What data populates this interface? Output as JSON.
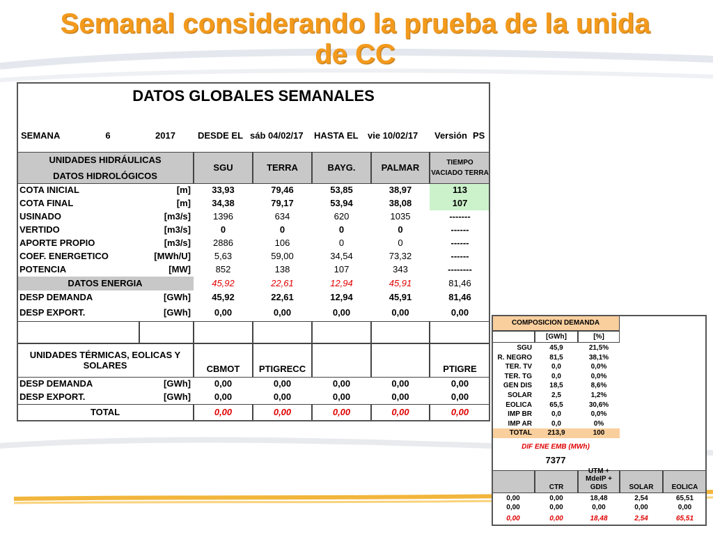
{
  "title": "Semanal considerando la prueba de la unida de CC",
  "main_table": {
    "heading": "DATOS GLOBALES SEMANALES",
    "week_row": [
      "SEMANA",
      "6",
      "2017",
      "DESDE EL",
      "sáb 04/02/17",
      "HASTA EL",
      "vie 10/02/17",
      "Versión",
      "PS"
    ],
    "hydro_header": {
      "group": "UNIDADES HIDRÁULICAS",
      "subgroup": "DATOS HIDROLÓGICOS",
      "columns": [
        "SGU",
        "TERRA",
        "BAYG.",
        "PALMAR",
        "TIEMPO VACIADO TERRA"
      ]
    },
    "hydro_rows": [
      [
        "COTA INICIAL",
        "[m]",
        "33,93",
        "79,46",
        "53,85",
        "38,97",
        "113"
      ],
      [
        "COTA FINAL",
        "[m]",
        "34,38",
        "79,17",
        "53,94",
        "38,08",
        "107"
      ],
      [
        "USINADO",
        "[m3/s]",
        "1396",
        "634",
        "620",
        "1035",
        "-------"
      ],
      [
        "VERTIDO",
        "[m3/s]",
        "0",
        "0",
        "0",
        "0",
        "------"
      ],
      [
        "APORTE PROPIO",
        "[m3/s]",
        "2886",
        "106",
        "0",
        "0",
        "------"
      ],
      [
        "COEF. ENERGETICO",
        "[MWh/U]",
        "5,63",
        "59,00",
        "34,54",
        "73,32",
        "------"
      ],
      [
        "POTENCIA",
        "[MW]",
        "852",
        "138",
        "107",
        "343",
        "--------"
      ]
    ],
    "energy_row": [
      "DATOS ENERGIA",
      "45,92",
      "22,61",
      "12,94",
      "45,91",
      "81,46"
    ],
    "energy_rows": [
      [
        "DESP DEMANDA",
        "[GWh]",
        "45,92",
        "22,61",
        "12,94",
        "45,91",
        "81,46"
      ],
      [
        "DESP EXPORT.",
        "[GWh]",
        "0,00",
        "0,00",
        "0,00",
        "0,00",
        "0,00"
      ]
    ],
    "thermal_header": {
      "group": "UNIDADES TÉRMICAS, EOLICAS Y SOLARES",
      "columns": [
        "CBMOT",
        "PTIGRECC",
        null,
        null,
        "PTIGRE"
      ]
    },
    "thermal_rows": [
      [
        "DESP DEMANDA",
        "[GWh]",
        "0,00",
        "0,00",
        "0,00",
        "0,00",
        "0,00"
      ],
      [
        "DESP EXPORT.",
        "[GWh]",
        "0,00",
        "0,00",
        "0,00",
        "0,00",
        "0,00"
      ]
    ],
    "total_row": [
      "TOTAL",
      "0,00",
      "0,00",
      "0,00",
      "0,00",
      "0,00"
    ]
  },
  "side_table": {
    "heading": "COMPOSICION DEMANDA",
    "columns": [
      "[GWh]",
      "[%]"
    ],
    "rows": [
      [
        "SGU",
        "45,9",
        "21,5%"
      ],
      [
        "R. NEGRO",
        "81,5",
        "38,1%"
      ],
      [
        "TER. TV",
        "0,0",
        "0,0%"
      ],
      [
        "TER. TG",
        "0,0",
        "0,0%"
      ],
      [
        "GEN DIS",
        "18,5",
        "8,6%"
      ],
      [
        "SOLAR",
        "2,5",
        "1,2%"
      ],
      [
        "EOLICA",
        "65,5",
        "30,6%"
      ],
      [
        "IMP BR",
        "0,0",
        "0,0%"
      ],
      [
        "IMP AR",
        "0,0",
        "0%"
      ],
      [
        "TOTAL",
        "213,9",
        "100"
      ]
    ],
    "dif_label": "DIF ENE EMB (MWh)",
    "dif_value": "7377",
    "bottom_columns": [
      null,
      "CTR",
      "UTM + MdeIP + GDIS",
      "SOLAR",
      "EOLICA"
    ],
    "bottom_rows": [
      [
        "0,00",
        "0,00",
        "18,48",
        "2,54",
        "65,51"
      ],
      [
        "0,00",
        "0,00",
        "0,00",
        "0,00",
        "0,00"
      ],
      [
        "0,00",
        "0,00",
        "18,48",
        "2,54",
        "65,51"
      ]
    ]
  }
}
